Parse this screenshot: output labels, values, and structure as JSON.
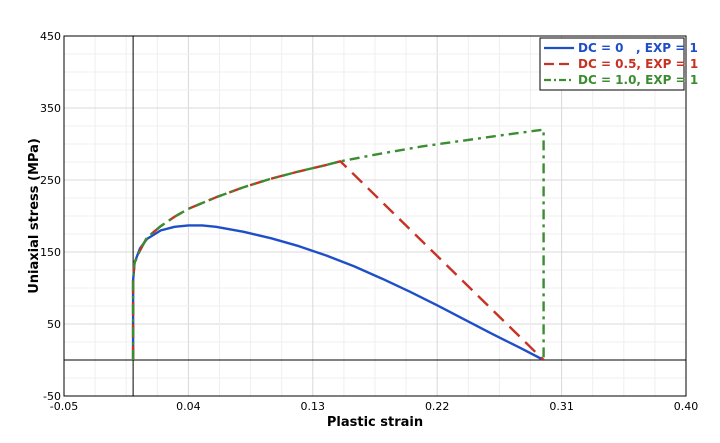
{
  "chart_data": {
    "type": "line",
    "title": "",
    "xlabel": "Plastic strain",
    "ylabel": "Uniaxial stress (MPa)",
    "xlim": [
      -0.05,
      0.4
    ],
    "ylim": [
      -50,
      450
    ],
    "x_ticks": [
      "-0.05",
      "0.04",
      "0.13",
      "0.22",
      "0.31",
      "0.40"
    ],
    "y_ticks": [
      "-50",
      "50",
      "150",
      "250",
      "350",
      "450"
    ],
    "grid": true,
    "legend_position": "top-right",
    "series": [
      {
        "name": "DC = 0   , EXP = 1",
        "color": "#1f4fc8",
        "dash": "solid",
        "points": [
          [
            0,
            0
          ],
          [
            0,
            110
          ],
          [
            0.001,
            135
          ],
          [
            0.005,
            155
          ],
          [
            0.01,
            168
          ],
          [
            0.02,
            180
          ],
          [
            0.03,
            185
          ],
          [
            0.04,
            187
          ],
          [
            0.05,
            187
          ],
          [
            0.06,
            185
          ],
          [
            0.08,
            178
          ],
          [
            0.1,
            169
          ],
          [
            0.12,
            158
          ],
          [
            0.14,
            145
          ],
          [
            0.16,
            130
          ],
          [
            0.18,
            113
          ],
          [
            0.2,
            95
          ],
          [
            0.22,
            76
          ],
          [
            0.24,
            56
          ],
          [
            0.26,
            36
          ],
          [
            0.28,
            17
          ],
          [
            0.297,
            0
          ]
        ]
      },
      {
        "name": "DC = 0.5, EXP = 1",
        "color": "#c83224",
        "dash": "dash",
        "points": [
          [
            0,
            0
          ],
          [
            0,
            110
          ],
          [
            0.001,
            135
          ],
          [
            0.005,
            152
          ],
          [
            0.01,
            170
          ],
          [
            0.02,
            186
          ],
          [
            0.03,
            199
          ],
          [
            0.04,
            210
          ],
          [
            0.06,
            226
          ],
          [
            0.08,
            240
          ],
          [
            0.1,
            252
          ],
          [
            0.12,
            262
          ],
          [
            0.14,
            271
          ],
          [
            0.15,
            276
          ],
          [
            0.297,
            0
          ]
        ]
      },
      {
        "name": "DC = 1.0, EXP = 1",
        "color": "#3c8c32",
        "dash": "dashdot",
        "points": [
          [
            0,
            0
          ],
          [
            0,
            110
          ],
          [
            0.001,
            135
          ],
          [
            0.005,
            152
          ],
          [
            0.01,
            170
          ],
          [
            0.02,
            186
          ],
          [
            0.03,
            199
          ],
          [
            0.04,
            210
          ],
          [
            0.06,
            226
          ],
          [
            0.08,
            240
          ],
          [
            0.1,
            252
          ],
          [
            0.12,
            262
          ],
          [
            0.14,
            271
          ],
          [
            0.15,
            276
          ],
          [
            0.18,
            287
          ],
          [
            0.21,
            297
          ],
          [
            0.24,
            305
          ],
          [
            0.27,
            313
          ],
          [
            0.297,
            320
          ],
          [
            0.297,
            0
          ]
        ]
      }
    ]
  },
  "legend_colors": {
    "text": [
      "#1f4fc8",
      "#c83224",
      "#3c8c32"
    ]
  }
}
